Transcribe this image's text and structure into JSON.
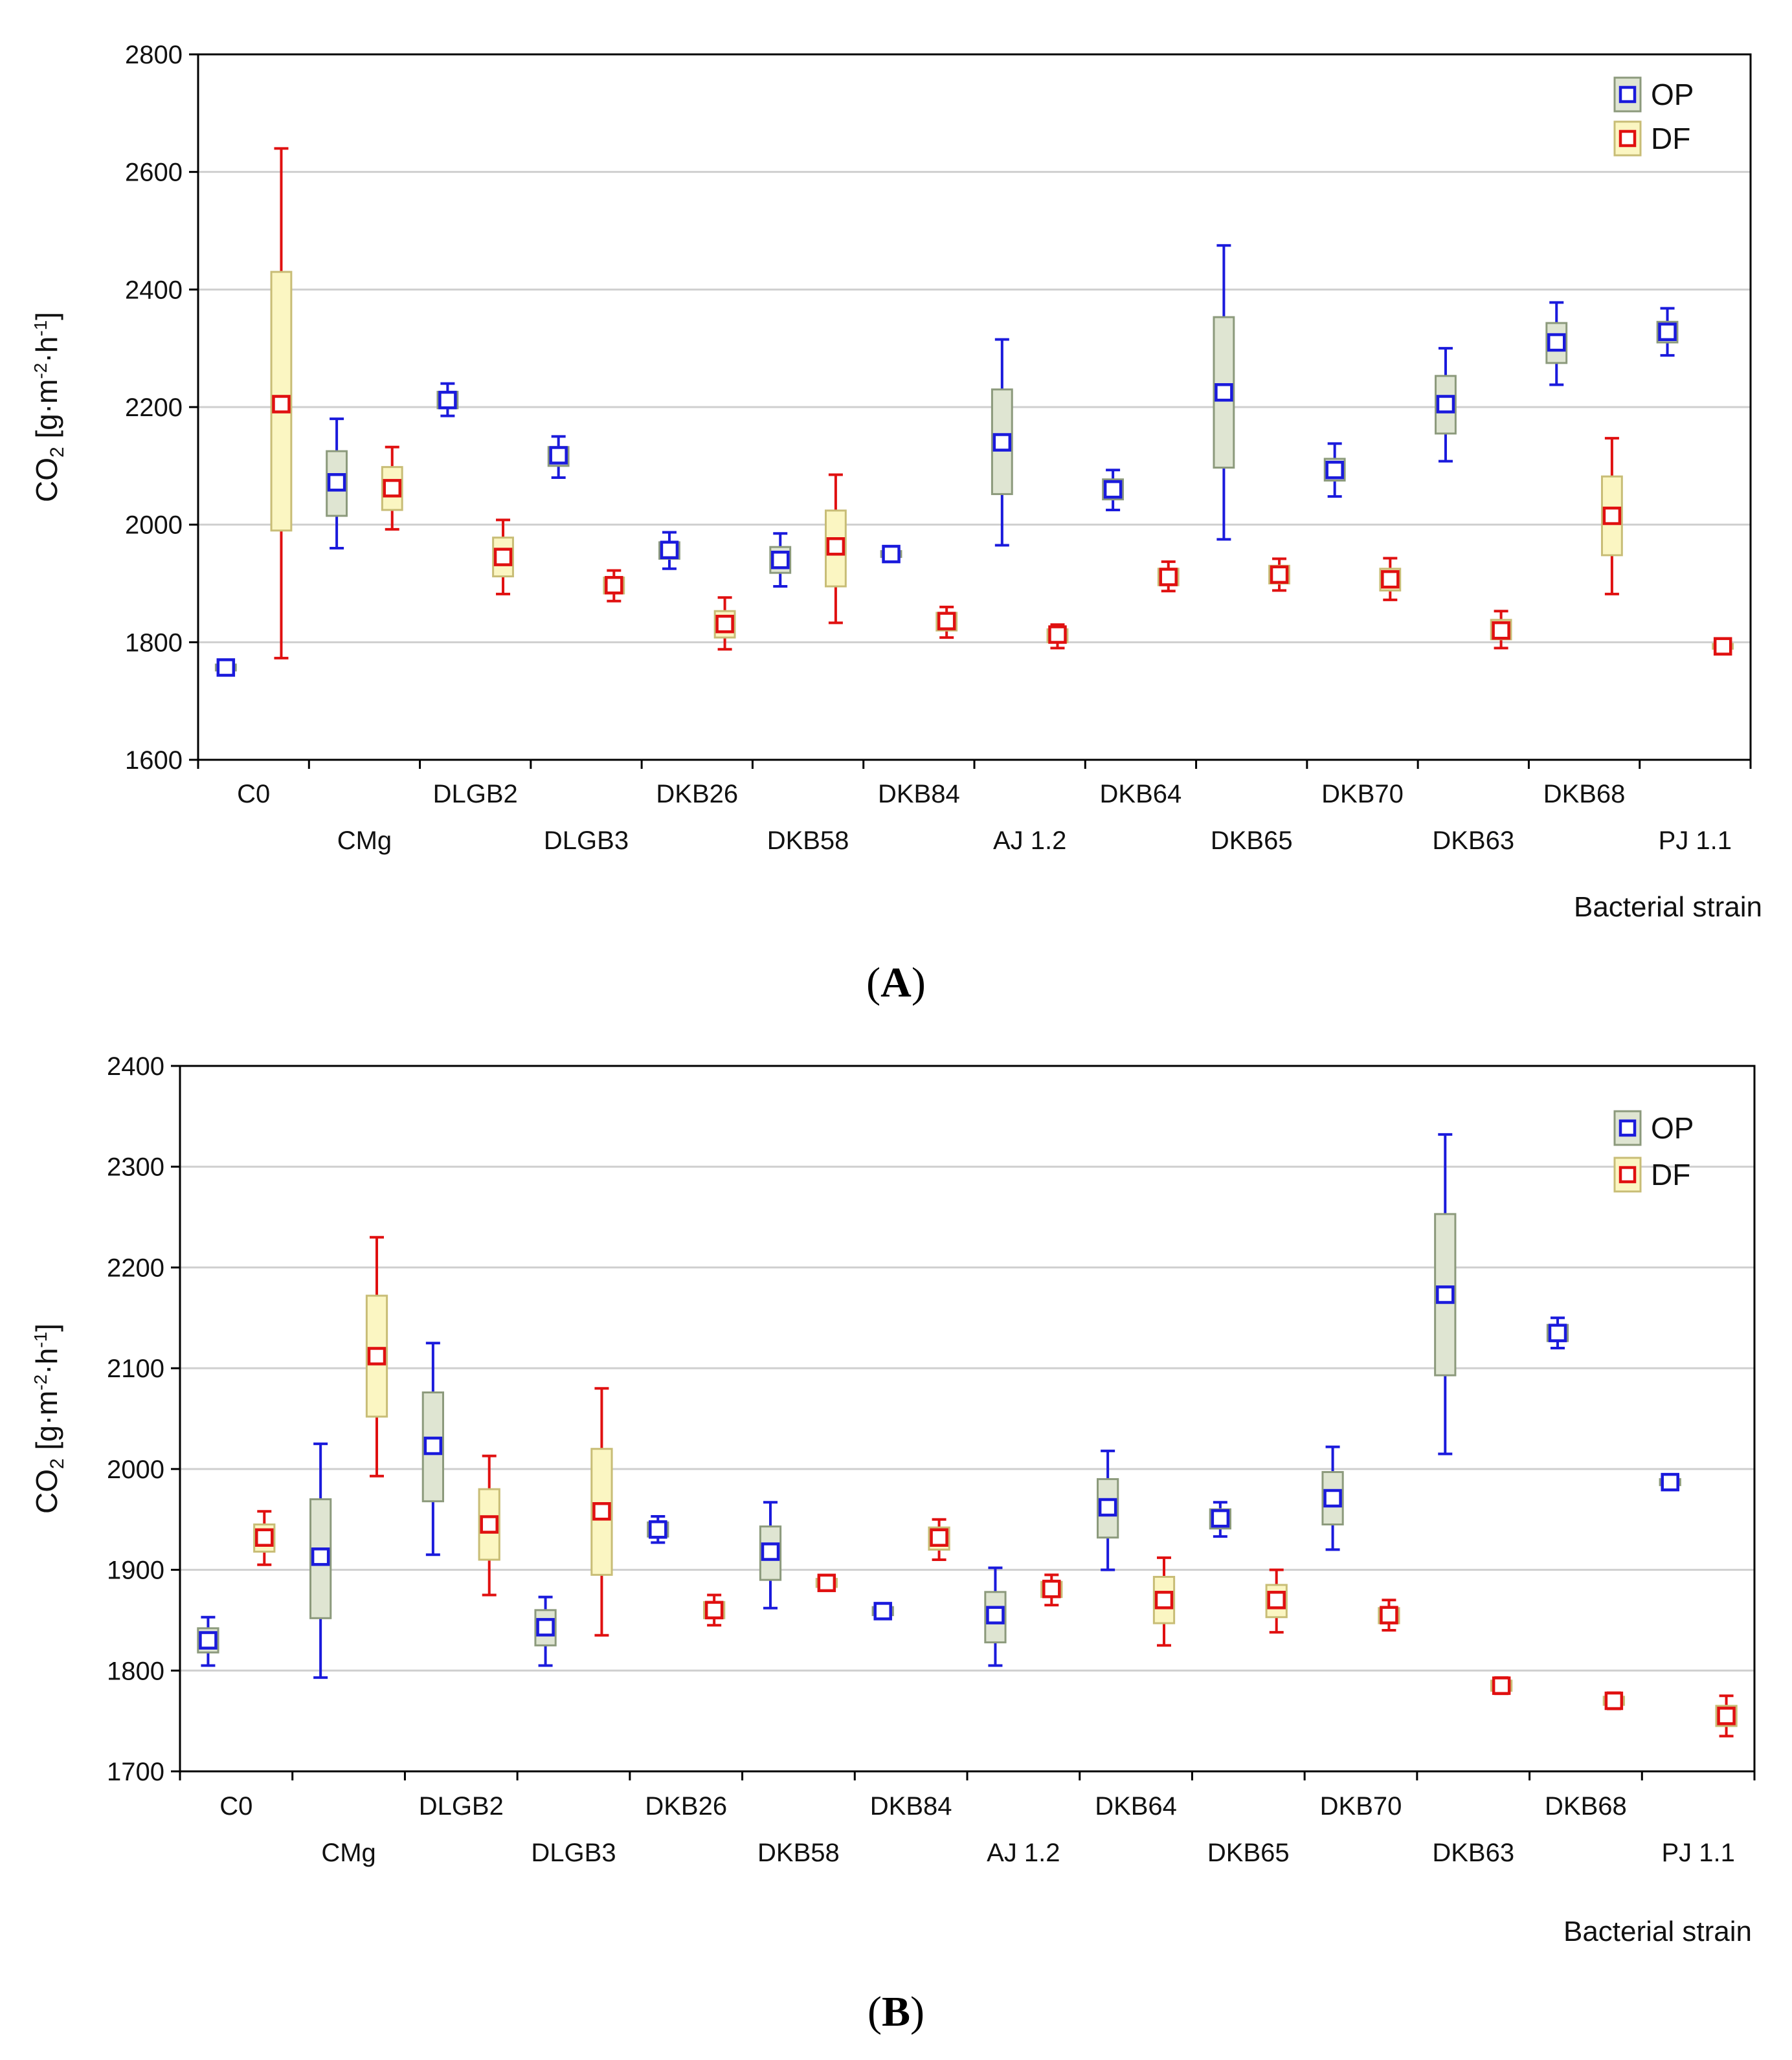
{
  "chart_data": [
    {
      "type": "box",
      "panel_label": "A",
      "ylabel": "CO2 [g·m-2·h-1]",
      "ylabel_parts": {
        "co": "CO",
        "sub2": "2",
        "unit_open": " [g·m",
        "exp1": "-2",
        "mid": "·h",
        "exp2": "-1",
        "unit_close": "]"
      },
      "xlabel": "Bacterial strain",
      "ylim": [
        1600,
        2800
      ],
      "yticks": [
        1600,
        1800,
        2000,
        2200,
        2400,
        2600,
        2800
      ],
      "categories": [
        "C0",
        "CMg",
        "DLGB2",
        "DLGB3",
        "DKB26",
        "DKB58",
        "DKB84",
        "AJ 1.2",
        "DKB64",
        "DKB65",
        "DKB70",
        "DKB63",
        "DKB68",
        "PJ 1.1"
      ],
      "legend": {
        "position": "top-right",
        "entries": [
          "OP",
          "DF"
        ]
      },
      "series": [
        {
          "name": "OP",
          "color": "#1a1adc",
          "box_fill": "#dfe5d2",
          "box_edge": "#8c9a7c",
          "boxes": [
            {
              "category": "C0",
              "mean": 1757,
              "q1": 1752,
              "q3": 1762,
              "min": 1752,
              "max": 1762
            },
            {
              "category": "CMg",
              "mean": 2072,
              "q1": 2015,
              "q3": 2125,
              "min": 1960,
              "max": 2180
            },
            {
              "category": "DLGB2",
              "mean": 2212,
              "q1": 2198,
              "q3": 2226,
              "min": 2185,
              "max": 2240
            },
            {
              "category": "DLGB3",
              "mean": 2118,
              "q1": 2100,
              "q3": 2132,
              "min": 2080,
              "max": 2150
            },
            {
              "category": "DKB26",
              "mean": 1957,
              "q1": 1942,
              "q3": 1970,
              "min": 1925,
              "max": 1987
            },
            {
              "category": "DKB58",
              "mean": 1940,
              "q1": 1918,
              "q3": 1962,
              "min": 1895,
              "max": 1985
            },
            {
              "category": "DKB84",
              "mean": 1950,
              "q1": 1945,
              "q3": 1955,
              "min": 1945,
              "max": 1955
            },
            {
              "category": "AJ 1.2",
              "mean": 2140,
              "q1": 2052,
              "q3": 2230,
              "min": 1965,
              "max": 2315
            },
            {
              "category": "DKB64",
              "mean": 2060,
              "q1": 2043,
              "q3": 2077,
              "min": 2025,
              "max": 2093
            },
            {
              "category": "DKB65",
              "mean": 2225,
              "q1": 2097,
              "q3": 2353,
              "min": 1975,
              "max": 2475
            },
            {
              "category": "DKB70",
              "mean": 2093,
              "q1": 2075,
              "q3": 2112,
              "min": 2048,
              "max": 2138
            },
            {
              "category": "DKB63",
              "mean": 2205,
              "q1": 2155,
              "q3": 2253,
              "min": 2108,
              "max": 2300
            },
            {
              "category": "DKB68",
              "mean": 2310,
              "q1": 2275,
              "q3": 2343,
              "min": 2238,
              "max": 2378
            },
            {
              "category": "PJ 1.1",
              "mean": 2328,
              "q1": 2310,
              "q3": 2345,
              "min": 2288,
              "max": 2368
            }
          ]
        },
        {
          "name": "DF",
          "color": "#e01010",
          "box_fill": "#fbf6c2",
          "box_edge": "#c8bd76",
          "boxes": [
            {
              "category": "C0",
              "mean": 2205,
              "q1": 1990,
              "q3": 2430,
              "min": 1773,
              "max": 2640
            },
            {
              "category": "CMg",
              "mean": 2062,
              "q1": 2025,
              "q3": 2098,
              "min": 1992,
              "max": 2132
            },
            {
              "category": "DLGB2",
              "mean": 1945,
              "q1": 1912,
              "q3": 1978,
              "min": 1882,
              "max": 2008
            },
            {
              "category": "DLGB3",
              "mean": 1897,
              "q1": 1883,
              "q3": 1910,
              "min": 1870,
              "max": 1922
            },
            {
              "category": "DKB26",
              "mean": 1831,
              "q1": 1808,
              "q3": 1853,
              "min": 1788,
              "max": 1876
            },
            {
              "category": "DKB58",
              "mean": 1963,
              "q1": 1895,
              "q3": 2024,
              "min": 1833,
              "max": 2085
            },
            {
              "category": "DKB84",
              "mean": 1836,
              "q1": 1820,
              "q3": 1850,
              "min": 1808,
              "max": 1860
            },
            {
              "category": "AJ 1.2",
              "mean": 1813,
              "q1": 1800,
              "q3": 1822,
              "min": 1790,
              "max": 1830
            },
            {
              "category": "DKB64",
              "mean": 1911,
              "q1": 1897,
              "q3": 1925,
              "min": 1887,
              "max": 1937
            },
            {
              "category": "DKB65",
              "mean": 1915,
              "q1": 1900,
              "q3": 1930,
              "min": 1888,
              "max": 1942
            },
            {
              "category": "DKB70",
              "mean": 1907,
              "q1": 1888,
              "q3": 1925,
              "min": 1872,
              "max": 1943
            },
            {
              "category": "DKB63",
              "mean": 1820,
              "q1": 1805,
              "q3": 1838,
              "min": 1790,
              "max": 1853
            },
            {
              "category": "DKB68",
              "mean": 2015,
              "q1": 1948,
              "q3": 2082,
              "min": 1882,
              "max": 2147
            },
            {
              "category": "PJ 1.1",
              "mean": 1793,
              "q1": 1789,
              "q3": 1797,
              "min": 1786,
              "max": 1800
            }
          ]
        }
      ]
    },
    {
      "type": "box",
      "panel_label": "B",
      "ylabel": "CO2 [g·m-2·h-1]",
      "ylabel_parts": {
        "co": "CO",
        "sub2": "2",
        "unit_open": " [g·m",
        "exp1": "-2",
        "mid": "·h",
        "exp2": "-1",
        "unit_close": "]"
      },
      "xlabel": "Bacterial strain",
      "ylim": [
        1700,
        2400
      ],
      "yticks": [
        1700,
        1800,
        1900,
        2000,
        2100,
        2200,
        2300,
        2400
      ],
      "categories": [
        "C0",
        "CMg",
        "DLGB2",
        "DLGB3",
        "DKB26",
        "DKB58",
        "DKB84",
        "AJ 1.2",
        "DKB64",
        "DKB65",
        "DKB70",
        "DKB63",
        "DKB68",
        "PJ 1.1"
      ],
      "legend": {
        "position": "top-right",
        "entries": [
          "OP",
          "DF"
        ]
      },
      "series": [
        {
          "name": "OP",
          "color": "#1a1adc",
          "box_fill": "#dfe5d2",
          "box_edge": "#8c9a7c",
          "boxes": [
            {
              "category": "C0",
              "mean": 1830,
              "q1": 1818,
              "q3": 1842,
              "min": 1805,
              "max": 1853
            },
            {
              "category": "CMg",
              "mean": 1913,
              "q1": 1852,
              "q3": 1970,
              "min": 1793,
              "max": 2025
            },
            {
              "category": "DLGB2",
              "mean": 2023,
              "q1": 1968,
              "q3": 2076,
              "min": 1915,
              "max": 2125
            },
            {
              "category": "DLGB3",
              "mean": 1843,
              "q1": 1825,
              "q3": 1860,
              "min": 1805,
              "max": 1873
            },
            {
              "category": "DKB26",
              "mean": 1940,
              "q1": 1933,
              "q3": 1947,
              "min": 1927,
              "max": 1953
            },
            {
              "category": "DKB58",
              "mean": 1918,
              "q1": 1890,
              "q3": 1943,
              "min": 1862,
              "max": 1967
            },
            {
              "category": "DKB84",
              "mean": 1859,
              "q1": 1855,
              "q3": 1863,
              "min": 1855,
              "max": 1863
            },
            {
              "category": "AJ 1.2",
              "mean": 1855,
              "q1": 1828,
              "q3": 1878,
              "min": 1805,
              "max": 1902
            },
            {
              "category": "DKB64",
              "mean": 1962,
              "q1": 1932,
              "q3": 1990,
              "min": 1900,
              "max": 2018
            },
            {
              "category": "DKB65",
              "mean": 1951,
              "q1": 1941,
              "q3": 1960,
              "min": 1933,
              "max": 1967
            },
            {
              "category": "DKB70",
              "mean": 1971,
              "q1": 1945,
              "q3": 1997,
              "min": 1920,
              "max": 2022
            },
            {
              "category": "DKB63",
              "mean": 2173,
              "q1": 2093,
              "q3": 2253,
              "min": 2015,
              "max": 2332
            },
            {
              "category": "DKB68",
              "mean": 2135,
              "q1": 2127,
              "q3": 2143,
              "min": 2120,
              "max": 2150
            },
            {
              "category": "PJ 1.1",
              "mean": 1987,
              "q1": 1984,
              "q3": 1990,
              "min": 1982,
              "max": 1992
            }
          ]
        },
        {
          "name": "DF",
          "color": "#e01010",
          "box_fill": "#fbf6c2",
          "box_edge": "#c8bd76",
          "boxes": [
            {
              "category": "C0",
              "mean": 1932,
              "q1": 1918,
              "q3": 1945,
              "min": 1905,
              "max": 1958
            },
            {
              "category": "CMg",
              "mean": 2112,
              "q1": 2052,
              "q3": 2172,
              "min": 1993,
              "max": 2230
            },
            {
              "category": "DLGB2",
              "mean": 1945,
              "q1": 1910,
              "q3": 1980,
              "min": 1875,
              "max": 2013
            },
            {
              "category": "DLGB3",
              "mean": 1958,
              "q1": 1895,
              "q3": 2020,
              "min": 1835,
              "max": 2080
            },
            {
              "category": "DKB26",
              "mean": 1860,
              "q1": 1852,
              "q3": 1868,
              "min": 1845,
              "max": 1875
            },
            {
              "category": "DKB58",
              "mean": 1887,
              "q1": 1883,
              "q3": 1891,
              "min": 1880,
              "max": 1894
            },
            {
              "category": "DKB84",
              "mean": 1932,
              "q1": 1920,
              "q3": 1942,
              "min": 1910,
              "max": 1950
            },
            {
              "category": "AJ 1.2",
              "mean": 1881,
              "q1": 1873,
              "q3": 1888,
              "min": 1865,
              "max": 1895
            },
            {
              "category": "DKB64",
              "mean": 1870,
              "q1": 1847,
              "q3": 1893,
              "min": 1825,
              "max": 1912
            },
            {
              "category": "DKB65",
              "mean": 1870,
              "q1": 1853,
              "q3": 1885,
              "min": 1838,
              "max": 1900
            },
            {
              "category": "DKB70",
              "mean": 1855,
              "q1": 1847,
              "q3": 1862,
              "min": 1840,
              "max": 1870
            },
            {
              "category": "DKB63",
              "mean": 1785,
              "q1": 1780,
              "q3": 1790,
              "min": 1777,
              "max": 1793
            },
            {
              "category": "DKB68",
              "mean": 1770,
              "q1": 1766,
              "q3": 1774,
              "min": 1762,
              "max": 1778
            },
            {
              "category": "PJ 1.1",
              "mean": 1755,
              "q1": 1745,
              "q3": 1765,
              "min": 1735,
              "max": 1775
            }
          ]
        }
      ]
    }
  ]
}
